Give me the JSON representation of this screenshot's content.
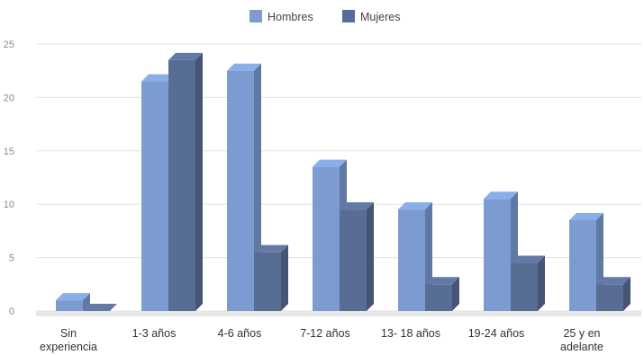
{
  "chart_data": {
    "type": "bar",
    "categories": [
      [
        "Sin",
        "experiencia"
      ],
      [
        "1-3 años"
      ],
      [
        "4-6 años"
      ],
      [
        "7-12 años"
      ],
      [
        "13- 18 años"
      ],
      [
        "19-24 años"
      ],
      [
        "25 y en",
        "adelante"
      ]
    ],
    "series": [
      {
        "name": "Hombres",
        "values": [
          1,
          21.5,
          22.5,
          13.5,
          9.5,
          10.5,
          8.5
        ],
        "color": "#7b9bd1"
      },
      {
        "name": "Mujeres",
        "values": [
          0,
          23.5,
          5.5,
          9.5,
          2.5,
          4.5,
          2.5
        ],
        "color": "#586d94"
      }
    ],
    "title": "",
    "xlabel": "",
    "ylabel": "",
    "ylim": [
      0,
      25
    ],
    "yticks": [
      "0",
      "5",
      "10",
      "15",
      "20",
      "25"
    ],
    "grid": true,
    "legend_position": "top-center",
    "style": "3d-bar"
  }
}
